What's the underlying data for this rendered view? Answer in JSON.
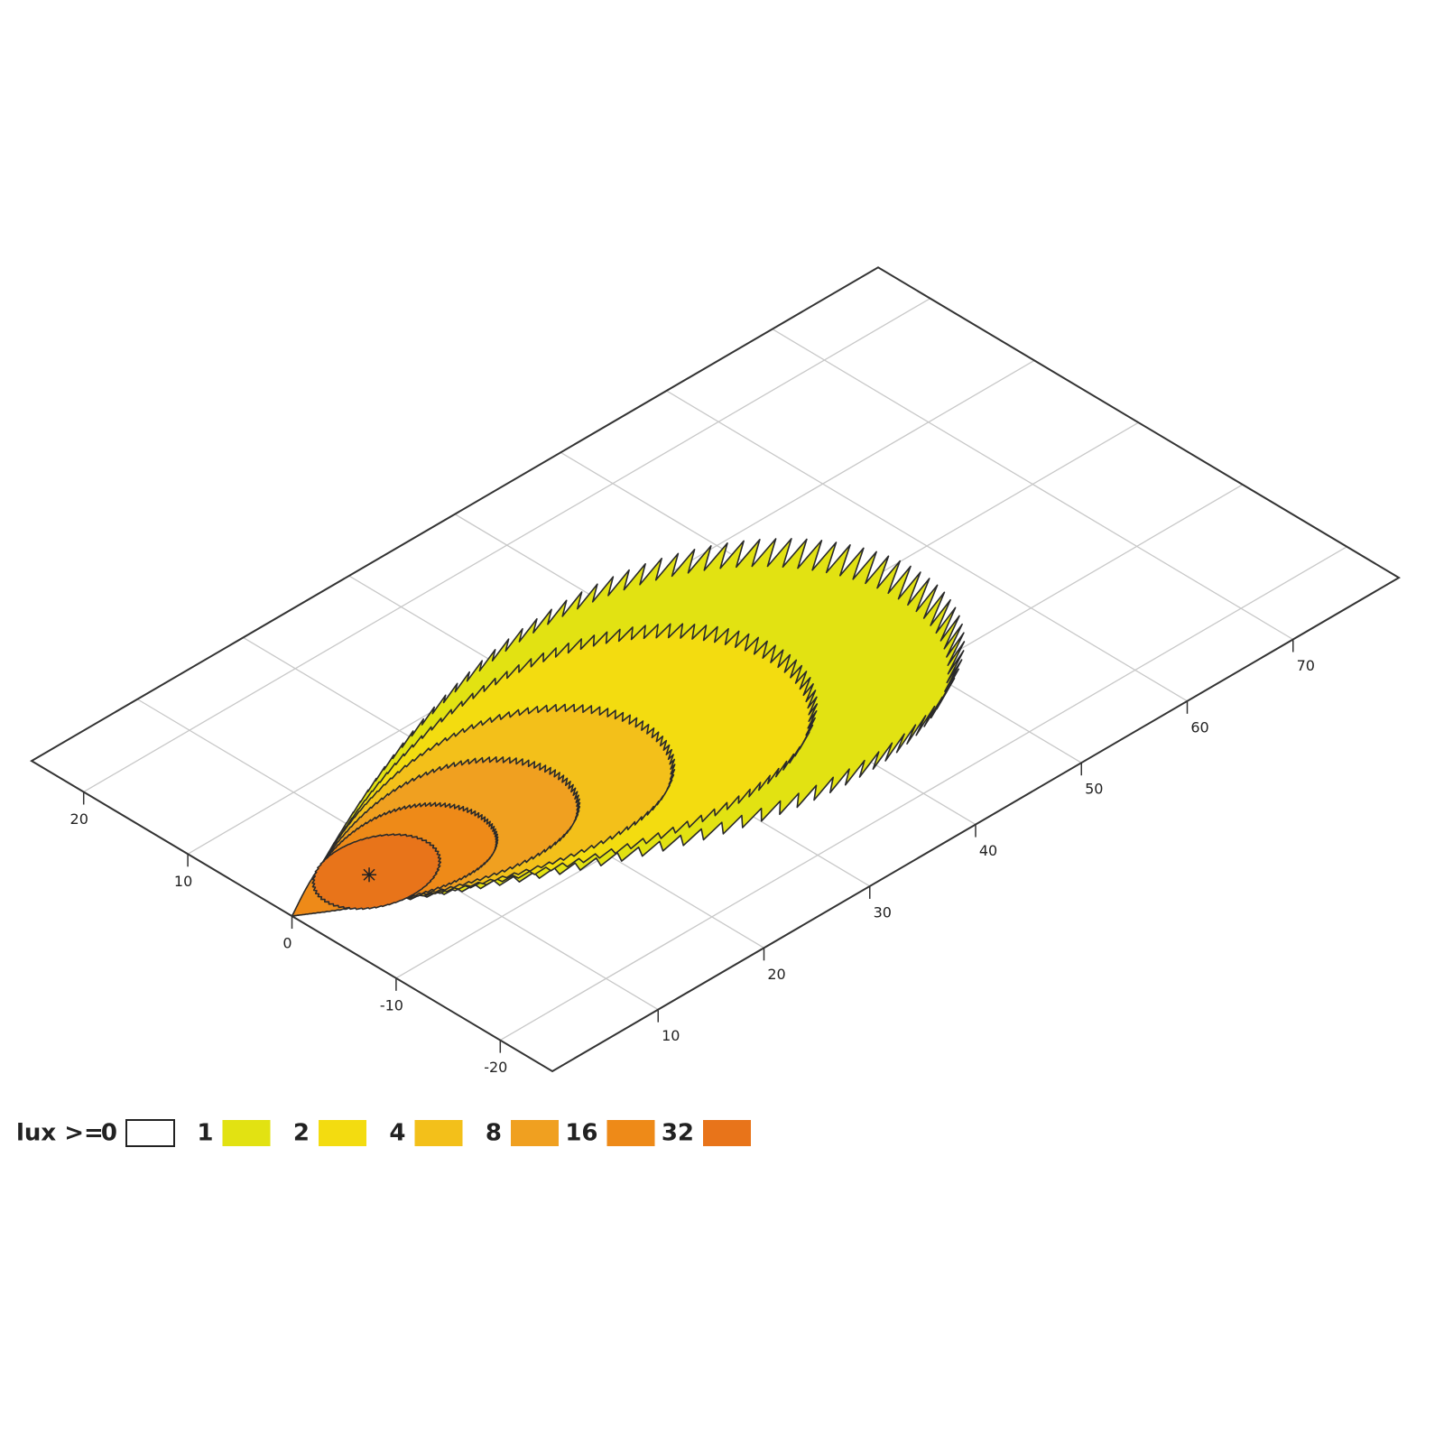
{
  "chart_data": {
    "type": "contour",
    "legend_title": "lux >=",
    "levels": [
      0,
      1,
      2,
      4,
      8,
      16,
      32
    ],
    "colors": [
      "#ffffff",
      "#e2e212",
      "#f3dc10",
      "#f3c01a",
      "#f0a020",
      "#ee8a18",
      "#e8741a"
    ],
    "xlim": [
      0,
      80
    ],
    "xticks": [
      10,
      20,
      30,
      40,
      50,
      60,
      70
    ],
    "ylim": [
      -25,
      25
    ],
    "yticks": [
      -20,
      -10,
      0,
      10,
      20
    ],
    "grid": true
  }
}
